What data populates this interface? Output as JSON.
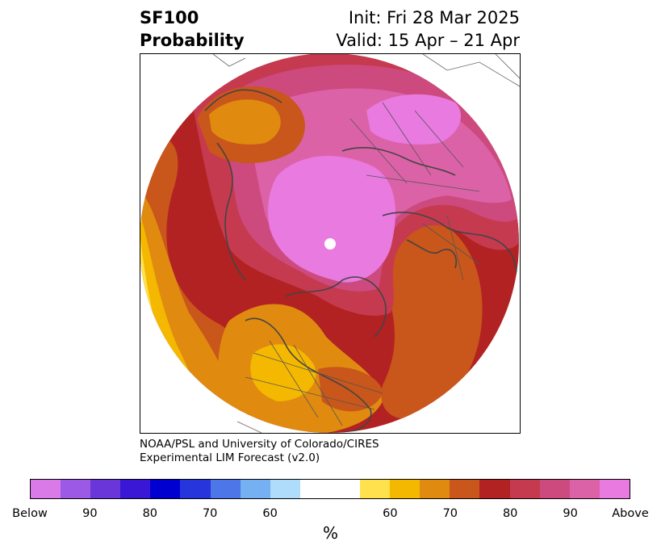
{
  "title": {
    "left_line1": "SF100",
    "left_line2": "Probability",
    "right_line1": "Init: Fri 28 Mar 2025",
    "right_line2": "Valid: 15 Apr – 21 Apr"
  },
  "credit": {
    "line1": "NOAA/PSL and University of Colorado/CIRES",
    "line2": "Experimental LIM Forecast (v2.0)"
  },
  "colorbar": {
    "unit": "%",
    "colors": [
      "#d97ae8",
      "#9b59e6",
      "#6a35d9",
      "#3a17d4",
      "#0000d0",
      "#2636dc",
      "#4d76e8",
      "#74b0f2",
      "#aedcfa",
      "#ffffff",
      "#ffe14d",
      "#f5b800",
      "#e08b10",
      "#c9561a",
      "#b22222",
      "#c63a50",
      "#cc4a7e",
      "#dc62a8",
      "#e87ae0"
    ],
    "tick_labels": [
      "Below",
      "90",
      "80",
      "70",
      "60",
      "60",
      "70",
      "80",
      "90",
      "Above"
    ]
  },
  "map": {
    "projection": "north-polar stereographic",
    "region": "Northern Hemisphere"
  }
}
